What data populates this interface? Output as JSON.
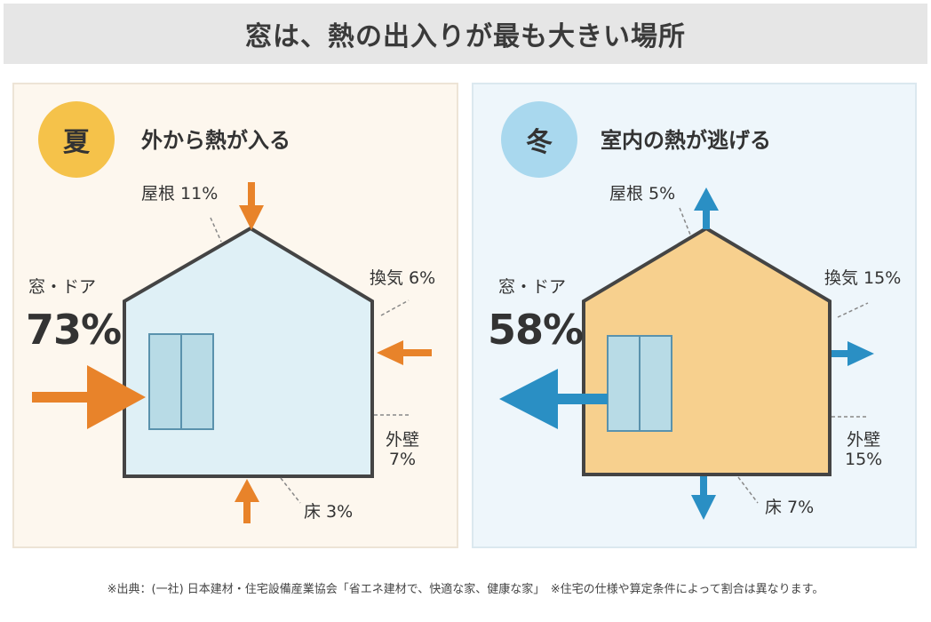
{
  "title": "窓は、熱の出入りが最も大きい場所",
  "summer": {
    "season": "夏",
    "heading": "外から熱が入る",
    "badge_color": "#f5c24a",
    "house_color": "#dff0f6",
    "arrow_color": "#e8832a",
    "labels": {
      "window_door": "窓・ドア",
      "window_door_pct": "73%",
      "roof": "屋根 11%",
      "ventilation": "換気 6%",
      "wall_1": "外壁",
      "wall_2": "7%",
      "floor": "床 3%"
    }
  },
  "winter": {
    "season": "冬",
    "heading": "室内の熱が逃げる",
    "badge_color": "#a9d8ee",
    "house_color": "#f7d08e",
    "arrow_color": "#2a8fc4",
    "labels": {
      "window_door": "窓・ドア",
      "window_door_pct": "58%",
      "roof": "屋根 5%",
      "ventilation": "換気 15%",
      "wall_1": "外壁",
      "wall_2": "15%",
      "floor": "床 7%"
    }
  },
  "footnote": "※出典：(一社) 日本建材・住宅設備産業協会「省エネ建材で、快適な家、健康な家」　※住宅の仕様や算定条件によって割合は異なります。"
}
